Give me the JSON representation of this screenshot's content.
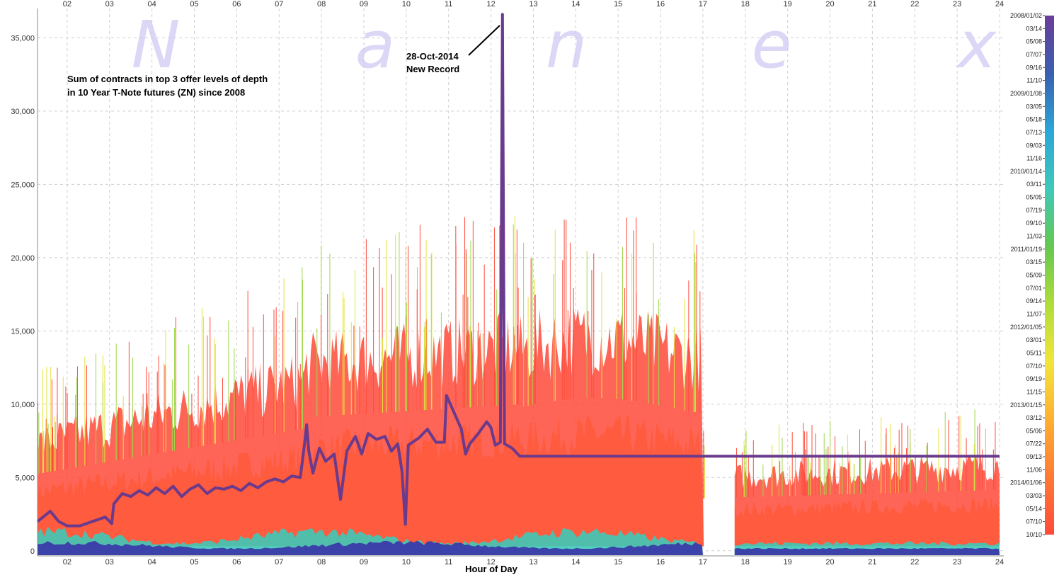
{
  "chart_data": {
    "type": "line",
    "title": "",
    "annotation_lines": [
      "Sum of contracts in top 3 offer levels of depth",
      "in 10 Year T-Note futures (ZN) since 2008"
    ],
    "record_label": [
      "28-Oct-2014",
      "New Record"
    ],
    "xlabel": "Hour of Day",
    "ylabel": "",
    "x_ticks": [
      "02",
      "03",
      "04",
      "05",
      "06",
      "07",
      "08",
      "09",
      "10",
      "11",
      "12",
      "13",
      "14",
      "15",
      "16",
      "17",
      "18",
      "19",
      "20",
      "21",
      "22",
      "23",
      "24"
    ],
    "xlim": [
      1.3,
      24.1
    ],
    "y_ticks": [
      "0",
      "5,000",
      "10,000",
      "15,000",
      "20,000",
      "25,000",
      "30,000",
      "35,000"
    ],
    "y_tick_values": [
      0,
      5000,
      10000,
      15000,
      20000,
      25000,
      30000,
      35000
    ],
    "ylim": [
      -350,
      37000
    ],
    "grid": true,
    "watermark": [
      "N",
      "a",
      "n",
      "e",
      "x"
    ],
    "legend": {
      "position": "right",
      "type": "colorbar",
      "labels": [
        "2008/01/02",
        "03/14",
        "05/08",
        "07/07",
        "09/16",
        "11/10",
        "2009/01/08",
        "03/05",
        "05/18",
        "07/13",
        "09/03",
        "11/16",
        "2010/01/14",
        "03/11",
        "05/05",
        "07/19",
        "09/10",
        "11/03",
        "2011/01/19",
        "03/15",
        "05/09",
        "07/01",
        "09/14",
        "11/07",
        "2012/01/05",
        "03/01",
        "05/11",
        "07/10",
        "09/19",
        "11/15",
        "2013/01/15",
        "03/12",
        "05/06",
        "07/22",
        "09/13",
        "11/06",
        "2014/01/06",
        "03/03",
        "05/14",
        "07/10",
        "10/10"
      ]
    },
    "colors": {
      "recent": "#ff4a3a",
      "mid": "#ffb347",
      "older": "#9fd84a",
      "oldest": "#3a3aa8",
      "highlight": "#6a3a8c",
      "colorbar_stops": [
        "#6a3d9a",
        "#3a5fb0",
        "#2ba6d8",
        "#3ec9b8",
        "#64c850",
        "#b0dc3a",
        "#f2e53a",
        "#ffb030",
        "#ff7a34",
        "#ff4a3a"
      ]
    },
    "series": [
      {
        "name": "28-Oct-2014",
        "color": "#6a3a8c",
        "points": [
          [
            1.3,
            2000
          ],
          [
            1.6,
            2700
          ],
          [
            1.8,
            2000
          ],
          [
            2.0,
            1700
          ],
          [
            2.3,
            1700
          ],
          [
            2.5,
            1900
          ],
          [
            2.7,
            2100
          ],
          [
            2.9,
            2300
          ],
          [
            3.05,
            1850
          ],
          [
            3.1,
            3200
          ],
          [
            3.3,
            3900
          ],
          [
            3.5,
            3700
          ],
          [
            3.7,
            4100
          ],
          [
            3.9,
            3800
          ],
          [
            4.1,
            4300
          ],
          [
            4.3,
            3900
          ],
          [
            4.5,
            4400
          ],
          [
            4.7,
            3700
          ],
          [
            4.9,
            4200
          ],
          [
            5.1,
            4500
          ],
          [
            5.3,
            3900
          ],
          [
            5.5,
            4300
          ],
          [
            5.7,
            4200
          ],
          [
            5.9,
            4400
          ],
          [
            6.1,
            4100
          ],
          [
            6.3,
            4600
          ],
          [
            6.5,
            4300
          ],
          [
            6.7,
            4700
          ],
          [
            6.9,
            4900
          ],
          [
            7.1,
            4700
          ],
          [
            7.3,
            5100
          ],
          [
            7.5,
            5000
          ],
          [
            7.6,
            7300
          ],
          [
            7.65,
            8600
          ],
          [
            7.7,
            6800
          ],
          [
            7.8,
            5300
          ],
          [
            7.95,
            7000
          ],
          [
            8.1,
            6100
          ],
          [
            8.3,
            6600
          ],
          [
            8.45,
            3500
          ],
          [
            8.6,
            6800
          ],
          [
            8.8,
            7800
          ],
          [
            8.95,
            6600
          ],
          [
            9.1,
            8000
          ],
          [
            9.3,
            7600
          ],
          [
            9.5,
            7800
          ],
          [
            9.65,
            6800
          ],
          [
            9.8,
            7300
          ],
          [
            9.9,
            5400
          ],
          [
            9.98,
            1800
          ],
          [
            10.05,
            7200
          ],
          [
            10.3,
            7700
          ],
          [
            10.5,
            8300
          ],
          [
            10.7,
            7400
          ],
          [
            10.9,
            7400
          ],
          [
            10.95,
            10600
          ],
          [
            11.15,
            9300
          ],
          [
            11.3,
            8300
          ],
          [
            11.4,
            6600
          ],
          [
            11.5,
            7300
          ],
          [
            11.7,
            8000
          ],
          [
            11.9,
            8800
          ],
          [
            12.0,
            8400
          ],
          [
            12.1,
            7200
          ],
          [
            12.22,
            7400
          ],
          [
            12.27,
            36600
          ],
          [
            12.32,
            7300
          ],
          [
            12.5,
            7000
          ],
          [
            12.68,
            6450
          ],
          [
            24.0,
            6450
          ]
        ]
      }
    ]
  }
}
